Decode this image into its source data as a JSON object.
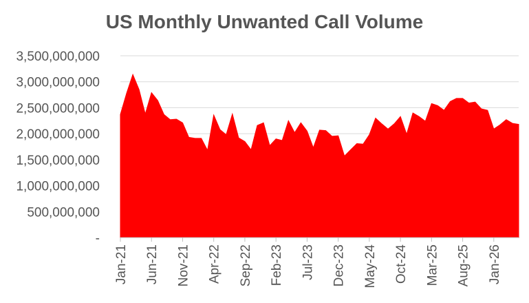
{
  "chart_data": {
    "type": "area",
    "title": "US Monthly Unwanted Call Volume",
    "xlabel": "",
    "ylabel": "",
    "ylim": [
      0,
      3500000000
    ],
    "y_ticks": [
      {
        "value": 3500000000,
        "label": "3,500,000,000"
      },
      {
        "value": 3000000000,
        "label": "3,000,000,000"
      },
      {
        "value": 2500000000,
        "label": "2,500,000,000"
      },
      {
        "value": 2000000000,
        "label": "2,000,000,000"
      },
      {
        "value": 1500000000,
        "label": "1,500,000,000"
      },
      {
        "value": 1000000000,
        "label": "1,000,000,000"
      },
      {
        "value": 500000000,
        "label": "500,000,000"
      },
      {
        "value": 0,
        "label": "-"
      }
    ],
    "x_ticks": [
      "Jan-21",
      "Jun-21",
      "Nov-21",
      "Apr-22",
      "Sep-22",
      "Feb-23",
      "Jul-23",
      "Dec-23",
      "May-24",
      "Oct-24",
      "Mar-25",
      "Aug-25",
      "Jan-26"
    ],
    "grid": true,
    "color": "#ff0000",
    "series": [
      {
        "values": [
          2370000000,
          2780000000,
          3140000000,
          2850000000,
          2380000000,
          2790000000,
          2640000000,
          2370000000,
          2270000000,
          2280000000,
          2210000000,
          1930000000,
          1910000000,
          1910000000,
          1680000000,
          2360000000,
          2080000000,
          1980000000,
          2380000000,
          1920000000,
          1850000000,
          1690000000,
          2160000000,
          2210000000,
          1770000000,
          1900000000,
          1870000000,
          2250000000,
          2020000000,
          2210000000,
          2050000000,
          1730000000,
          2070000000,
          2060000000,
          1950000000,
          1960000000,
          1570000000,
          1690000000,
          1810000000,
          1800000000,
          1980000000,
          2300000000,
          2190000000,
          2090000000,
          2190000000,
          2330000000,
          1990000000,
          2400000000,
          2330000000,
          2240000000,
          2580000000,
          2540000000,
          2450000000,
          2620000000,
          2680000000,
          2680000000,
          2590000000,
          2610000000,
          2480000000,
          2450000000,
          2090000000,
          2170000000,
          2270000000,
          2200000000,
          2180000000
        ]
      }
    ]
  }
}
